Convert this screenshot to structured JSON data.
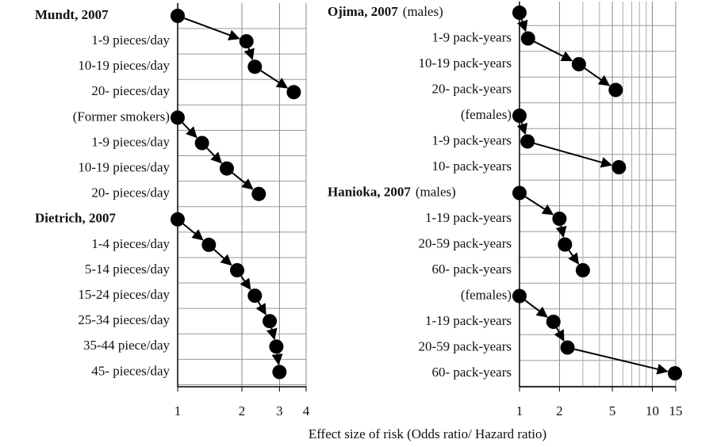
{
  "chart_data": [
    {
      "type": "arrow-dot",
      "xlabel": "Effect size of risk (Odds ratio/ Hazard ratio)",
      "log": true,
      "xlim": [
        1,
        4
      ],
      "xticks": [
        1,
        2,
        3,
        4
      ],
      "xminor": [],
      "color": "#000000",
      "groups": [
        {
          "title": "Mundt, 2007",
          "bold": true,
          "reference": 1,
          "categories": [
            "1-9 pieces/day",
            "10-19 pieces/day",
            "20- pieces/day"
          ],
          "values": [
            2.1,
            2.3,
            3.5
          ]
        },
        {
          "title": "(Former smokers)",
          "bold": false,
          "reference": 1,
          "categories": [
            "1-9 pieces/day",
            "10-19 pieces/day",
            "20- pieces/day"
          ],
          "values": [
            1.3,
            1.7,
            2.4
          ]
        },
        {
          "title": "Dietrich, 2007",
          "bold": true,
          "reference": 1,
          "categories": [
            "1-4 pieces/day",
            "5-14 pieces/day",
            "15-24 pieces/day",
            "25-34 pieces/day",
            "35-44 piece/day",
            "45- pieces/day"
          ],
          "values": [
            1.4,
            1.9,
            2.3,
            2.7,
            2.9,
            3.0
          ]
        }
      ]
    },
    {
      "type": "arrow-dot",
      "log": true,
      "xlim": [
        1,
        15
      ],
      "xticks": [
        1,
        2,
        5,
        10,
        15
      ],
      "xminor": [
        3,
        4,
        6,
        7,
        8,
        9
      ],
      "color": "#000000",
      "groups": [
        {
          "title": "Ojima, 2007",
          "subtitle": "(males)",
          "bold": true,
          "reference": 1,
          "categories": [
            "1-9 pack-years",
            "10-19 pack-years",
            "20- pack-years"
          ],
          "values": [
            1.16,
            2.8,
            5.3
          ]
        },
        {
          "title": "(females)",
          "bold": false,
          "reference": 1,
          "categories": [
            "1-9 pack-years",
            "10- pack-years"
          ],
          "values": [
            1.15,
            5.6
          ]
        },
        {
          "title": "Hanioka, 2007",
          "subtitle": "(males)",
          "bold": true,
          "reference": 1,
          "categories": [
            "1-19 pack-years",
            "20-59 pack-years",
            "60- pack-years"
          ],
          "values": [
            2.0,
            2.2,
            3.0
          ]
        },
        {
          "title": "(females)",
          "bold": false,
          "reference": 1,
          "categories": [
            "1-19 pack-years",
            "20-59 pack-years",
            "60- pack-years"
          ],
          "values": [
            1.8,
            2.3,
            14.8
          ]
        }
      ]
    }
  ]
}
